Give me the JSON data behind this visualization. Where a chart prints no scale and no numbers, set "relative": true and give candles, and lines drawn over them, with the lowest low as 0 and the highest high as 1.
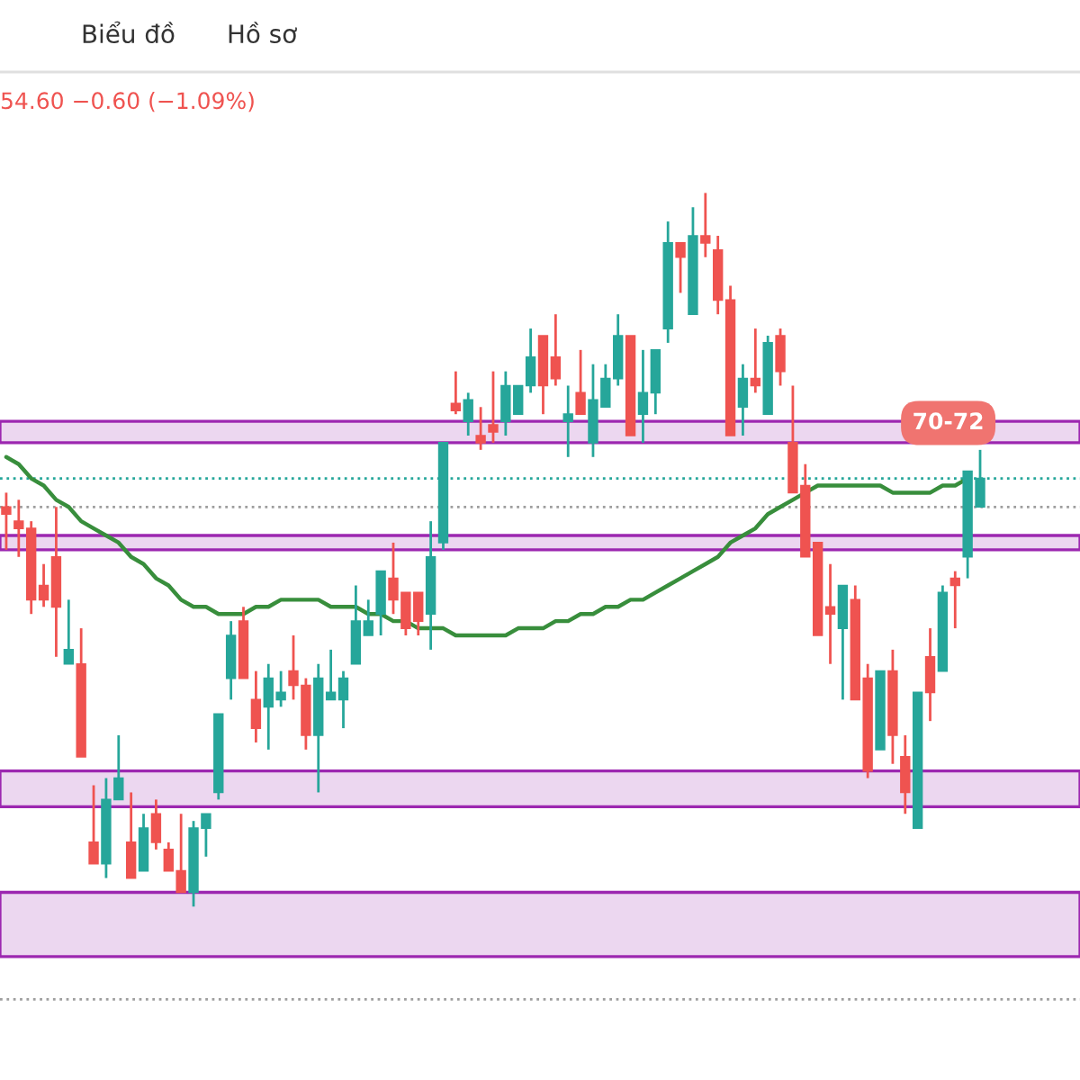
{
  "chart_data": {
    "type": "candlestick",
    "relative": true,
    "categories": [
      null,
      null,
      null,
      null,
      null,
      null,
      null,
      null,
      null,
      null,
      null,
      null,
      null,
      null,
      null,
      null,
      null,
      null,
      null,
      null,
      null,
      null,
      null,
      null,
      null,
      null,
      null,
      null,
      null,
      null,
      null,
      null,
      null,
      null,
      null,
      null,
      null,
      null,
      null,
      null,
      null,
      null,
      null,
      null,
      null,
      null,
      null,
      null,
      null,
      null,
      null,
      null,
      null,
      null,
      null,
      null,
      null,
      null,
      null,
      null,
      null,
      null,
      null,
      null,
      null,
      null,
      null,
      null,
      null,
      null,
      null,
      null,
      null,
      null,
      null,
      null,
      null,
      null,
      null
    ],
    "ohlc": [
      [
        0.56,
        0.58,
        0.5,
        0.55
      ],
      [
        0.54,
        0.57,
        0.49,
        0.53
      ],
      [
        0.53,
        0.54,
        0.41,
        0.43
      ],
      [
        0.45,
        0.48,
        0.42,
        0.43
      ],
      [
        0.49,
        0.56,
        0.35,
        0.42
      ],
      [
        0.34,
        0.43,
        0.34,
        0.36
      ],
      [
        0.34,
        0.39,
        0.21,
        0.21
      ],
      [
        0.09,
        0.17,
        0.06,
        0.06
      ],
      [
        0.06,
        0.18,
        0.04,
        0.15
      ],
      [
        0.15,
        0.24,
        0.15,
        0.18
      ],
      [
        0.09,
        0.16,
        0.04,
        0.04
      ],
      [
        0.05,
        0.13,
        0.05,
        0.11
      ],
      [
        0.13,
        0.15,
        0.08,
        0.09
      ],
      [
        0.08,
        0.09,
        0.05,
        0.05
      ],
      [
        0.05,
        0.13,
        0.02,
        0.02
      ],
      [
        0.02,
        0.12,
        0.0,
        0.11
      ],
      [
        0.11,
        0.13,
        0.07,
        0.13
      ],
      [
        0.16,
        0.27,
        0.15,
        0.27
      ],
      [
        0.32,
        0.4,
        0.29,
        0.38
      ],
      [
        0.4,
        0.42,
        0.32,
        0.32
      ],
      [
        0.29,
        0.33,
        0.23,
        0.25
      ],
      [
        0.28,
        0.34,
        0.22,
        0.32
      ],
      [
        0.29,
        0.33,
        0.28,
        0.3
      ],
      [
        0.33,
        0.38,
        0.29,
        0.31
      ],
      [
        0.31,
        0.32,
        0.22,
        0.24
      ],
      [
        0.24,
        0.34,
        0.16,
        0.32
      ],
      [
        0.29,
        0.36,
        0.29,
        0.3
      ],
      [
        0.29,
        0.33,
        0.25,
        0.32
      ],
      [
        0.34,
        0.45,
        0.34,
        0.4
      ],
      [
        0.38,
        0.43,
        0.38,
        0.4
      ],
      [
        0.41,
        0.47,
        0.38,
        0.47
      ],
      [
        0.46,
        0.51,
        0.41,
        0.43
      ],
      [
        0.44,
        0.44,
        0.38,
        0.39
      ],
      [
        0.44,
        0.44,
        0.38,
        0.4
      ],
      [
        0.41,
        0.54,
        0.36,
        0.49
      ],
      [
        0.51,
        0.65,
        0.5,
        0.65
      ],
      [
        0.705,
        0.75,
        0.69,
        0.695
      ],
      [
        0.68,
        0.72,
        0.66,
        0.71
      ],
      [
        0.66,
        0.7,
        0.64,
        0.65
      ],
      [
        0.675,
        0.75,
        0.65,
        0.665
      ],
      [
        0.68,
        0.75,
        0.66,
        0.73
      ],
      [
        0.69,
        0.73,
        0.69,
        0.73
      ],
      [
        0.73,
        0.81,
        0.72,
        0.77
      ],
      [
        0.8,
        0.8,
        0.69,
        0.73
      ],
      [
        0.77,
        0.83,
        0.73,
        0.74
      ],
      [
        0.68,
        0.73,
        0.63,
        0.69
      ],
      [
        0.72,
        0.78,
        0.69,
        0.69
      ],
      [
        0.65,
        0.76,
        0.63,
        0.71
      ],
      [
        0.7,
        0.76,
        0.7,
        0.74
      ],
      [
        0.74,
        0.83,
        0.73,
        0.8
      ],
      [
        0.8,
        0.8,
        0.66,
        0.66
      ],
      [
        0.69,
        0.78,
        0.65,
        0.72
      ],
      [
        0.72,
        0.78,
        0.69,
        0.78
      ],
      [
        0.81,
        0.96,
        0.79,
        0.93
      ],
      [
        0.93,
        0.93,
        0.86,
        0.91
      ],
      [
        0.83,
        0.98,
        0.83,
        0.94
      ],
      [
        0.94,
        1.0,
        0.91,
        0.93
      ],
      [
        0.92,
        0.94,
        0.83,
        0.85
      ],
      [
        0.85,
        0.87,
        0.66,
        0.66
      ],
      [
        0.7,
        0.76,
        0.66,
        0.74
      ],
      [
        0.74,
        0.81,
        0.72,
        0.73
      ],
      [
        0.69,
        0.8,
        0.69,
        0.79
      ],
      [
        0.8,
        0.81,
        0.73,
        0.75
      ],
      [
        0.65,
        0.73,
        0.58,
        0.58
      ],
      [
        0.59,
        0.62,
        0.49,
        0.49
      ],
      [
        0.51,
        0.51,
        0.38,
        0.38
      ],
      [
        0.42,
        0.48,
        0.34,
        0.41
      ],
      [
        0.39,
        0.45,
        0.29,
        0.45
      ],
      [
        0.43,
        0.45,
        0.29,
        0.29
      ],
      [
        0.32,
        0.34,
        0.18,
        0.19
      ],
      [
        0.22,
        0.33,
        0.22,
        0.33
      ],
      [
        0.33,
        0.36,
        0.2,
        0.24
      ],
      [
        0.21,
        0.24,
        0.13,
        0.16
      ],
      [
        0.11,
        0.3,
        0.11,
        0.3
      ],
      [
        0.35,
        0.39,
        0.26,
        0.3
      ],
      [
        0.33,
        0.45,
        0.33,
        0.44
      ],
      [
        0.46,
        0.47,
        0.39,
        0.45
      ],
      [
        0.49,
        0.61,
        0.46,
        0.61
      ],
      [
        0.56,
        0.64,
        0.56,
        0.6
      ]
    ],
    "colors": [
      "#ef5350",
      "#ef5350",
      "#ef5350",
      "#ef5350",
      "#ef5350",
      "#26a69a",
      "#ef5350",
      "#ef5350",
      "#26a69a",
      "#26a69a",
      "#ef5350",
      "#26a69a",
      "#ef5350",
      "#ef5350",
      "#ef5350",
      "#26a69a",
      "#26a69a",
      "#26a69a",
      "#26a69a",
      "#ef5350",
      "#ef5350",
      "#26a69a",
      "#26a69a",
      "#ef5350",
      "#ef5350",
      "#26a69a",
      "#26a69a",
      "#26a69a",
      "#26a69a",
      "#26a69a",
      "#26a69a",
      "#ef5350",
      "#ef5350",
      "#ef5350",
      "#26a69a",
      "#26a69a",
      "#ef5350",
      "#26a69a",
      "#ef5350",
      "#ef5350",
      "#26a69a",
      "#26a69a",
      "#26a69a",
      "#ef5350",
      "#ef5350",
      "#26a69a",
      "#ef5350",
      "#26a69a",
      "#26a69a",
      "#26a69a",
      "#ef5350",
      "#26a69a",
      "#26a69a",
      "#26a69a",
      "#ef5350",
      "#26a69a",
      "#ef5350",
      "#ef5350",
      "#ef5350",
      "#26a69a",
      "#ef5350",
      "#26a69a",
      "#ef5350",
      "#ef5350",
      "#ef5350",
      "#ef5350",
      "#ef5350",
      "#26a69a",
      "#ef5350",
      "#ef5350",
      "#26a69a",
      "#ef5350",
      "#ef5350",
      "#26a69a",
      "#ef5350",
      "#26a69a",
      "#ef5350",
      "#26a69a",
      "#26a69a"
    ],
    "series": [
      {
        "type": "line",
        "color": "#388e3c",
        "values": [
          0.63,
          0.62,
          0.6,
          0.59,
          0.57,
          0.56,
          0.54,
          0.53,
          0.52,
          0.51,
          0.49,
          0.48,
          0.46,
          0.45,
          0.43,
          0.42,
          0.42,
          0.41,
          0.41,
          0.41,
          0.42,
          0.42,
          0.43,
          0.43,
          0.43,
          0.43,
          0.42,
          0.42,
          0.42,
          0.41,
          0.41,
          0.4,
          0.4,
          0.39,
          0.39,
          0.39,
          0.38,
          0.38,
          0.38,
          0.38,
          0.38,
          0.39,
          0.39,
          0.39,
          0.4,
          0.4,
          0.41,
          0.41,
          0.42,
          0.42,
          0.43,
          0.43,
          0.44,
          0.45,
          0.46,
          0.47,
          0.48,
          0.49,
          0.51,
          0.52,
          0.53,
          0.55,
          0.56,
          0.57,
          0.58,
          0.59,
          0.59,
          0.59,
          0.59,
          0.59,
          0.59,
          0.58,
          0.58,
          0.58,
          0.58,
          0.59,
          0.59,
          0.6,
          null
        ]
      }
    ],
    "bands": [
      {
        "axis": "y",
        "from": 0.65,
        "to": 0.68,
        "color": "#9c27b0"
      },
      {
        "axis": "y",
        "from": 0.5,
        "to": 0.52,
        "color": "#9c27b0"
      },
      {
        "axis": "y",
        "from": 0.14,
        "to": 0.19,
        "color": "#9c27b0"
      },
      {
        "axis": "y",
        "from": -0.07,
        "to": 0.02,
        "color": "#9c27b0"
      }
    ],
    "ref_lines": [
      {
        "axis": "y",
        "value": 0.6,
        "color": "#26a69a",
        "line_style": "dotted"
      },
      {
        "axis": "y",
        "value": 0.56,
        "color": "#9e9e9e",
        "line_style": "dotted"
      },
      {
        "axis": "y",
        "value": -0.13,
        "color": "#9e9e9e",
        "line_style": "dotted"
      }
    ],
    "annotations": [
      "Biểu đồ",
      "Hồ sơ",
      "54.60 −0.60 (−1.09%)",
      "70-72"
    ]
  }
}
